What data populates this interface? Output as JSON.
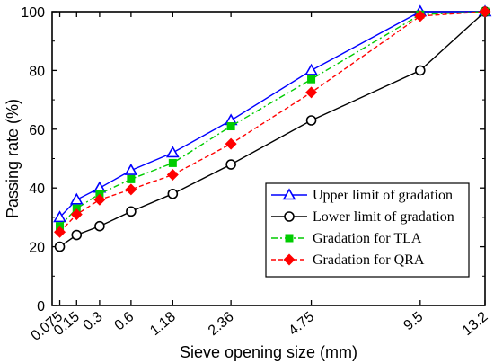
{
  "chart_data": {
    "type": "line",
    "xlabel": "Sieve opening size (mm)",
    "ylabel": "Passing rate (%)",
    "xscale": "power-0.45",
    "ylim": [
      0,
      100
    ],
    "x": [
      0.075,
      0.15,
      0.3,
      0.6,
      1.18,
      2.36,
      4.75,
      9.5,
      13.2
    ],
    "x_tick_labels": [
      "0.075",
      "0.15",
      "0.3",
      "0.6",
      "1.18",
      "2.36",
      "4.75",
      "9.5",
      "13.2"
    ],
    "y_ticks": [
      0,
      20,
      40,
      60,
      80,
      100
    ],
    "y_tick_labels": [
      "0",
      "20",
      "40",
      "60",
      "80",
      "100"
    ],
    "grid": false,
    "legend_placement": "bottom-right",
    "series": [
      {
        "name": "Upper limit  of gradation",
        "color": "#0000ff",
        "line_style": "solid",
        "marker": "open-triangle",
        "values": [
          30,
          36,
          40,
          46,
          52,
          63,
          80,
          100,
          100
        ]
      },
      {
        "name": "Lower limit of gradation",
        "color": "#000000",
        "line_style": "solid",
        "marker": "open-circle",
        "values": [
          20,
          24,
          27,
          32,
          38,
          48,
          63,
          80,
          100
        ]
      },
      {
        "name": "Gradation for TLA",
        "color": "#00cc00",
        "line_style": "dash-dot",
        "marker": "filled-square",
        "values": [
          27,
          33,
          38,
          43,
          48.5,
          61,
          77,
          99,
          100
        ]
      },
      {
        "name": "Gradation for QRA",
        "color": "#ff0000",
        "line_style": "dashed",
        "marker": "filled-diamond",
        "values": [
          25,
          31,
          36,
          39.5,
          44.5,
          55,
          72.5,
          98.5,
          100
        ]
      }
    ]
  }
}
